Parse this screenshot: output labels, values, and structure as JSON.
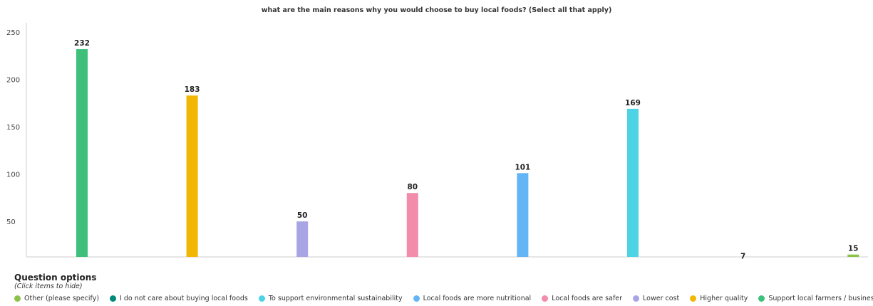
{
  "chart_data": {
    "type": "bar",
    "title": "what are the main reasons why you would choose to buy local foods? (Select all that apply)",
    "categories": [
      "Support local farmers / businesses",
      "Higher quality",
      "Lower cost",
      "Local foods are safer",
      "Local foods are more nutritional",
      "To support environmental sustainability",
      "I do not care about buying local foods",
      "Other (please specify)"
    ],
    "values": [
      232,
      183,
      50,
      80,
      101,
      169,
      7,
      15
    ],
    "colors": [
      "#3fc07a",
      "#f2b705",
      "#a9a4e4",
      "#f28caa",
      "#64b5f6",
      "#4dd4e4",
      "#00897b",
      "#8bc34a"
    ],
    "y_ticks": [
      50,
      100,
      150,
      200,
      250
    ],
    "ylim": [
      0,
      255
    ],
    "xlabel": "",
    "ylabel": "",
    "grid": false
  },
  "legend": {
    "title": "Question options",
    "hint": "(Click items to hide)",
    "items": [
      {
        "label": "Other (please specify)",
        "color": "#8bc34a"
      },
      {
        "label": "I do not care about buying local foods",
        "color": "#00897b"
      },
      {
        "label": "To support environmental sustainability",
        "color": "#4dd4e4"
      },
      {
        "label": "Local foods are more nutritional",
        "color": "#64b5f6"
      },
      {
        "label": "Local foods are safer",
        "color": "#f28caa"
      },
      {
        "label": "Lower cost",
        "color": "#a9a4e4"
      },
      {
        "label": "Higher quality",
        "color": "#f2b705"
      },
      {
        "label": "Support local farmers / businesses",
        "color": "#3fc07a"
      }
    ]
  }
}
